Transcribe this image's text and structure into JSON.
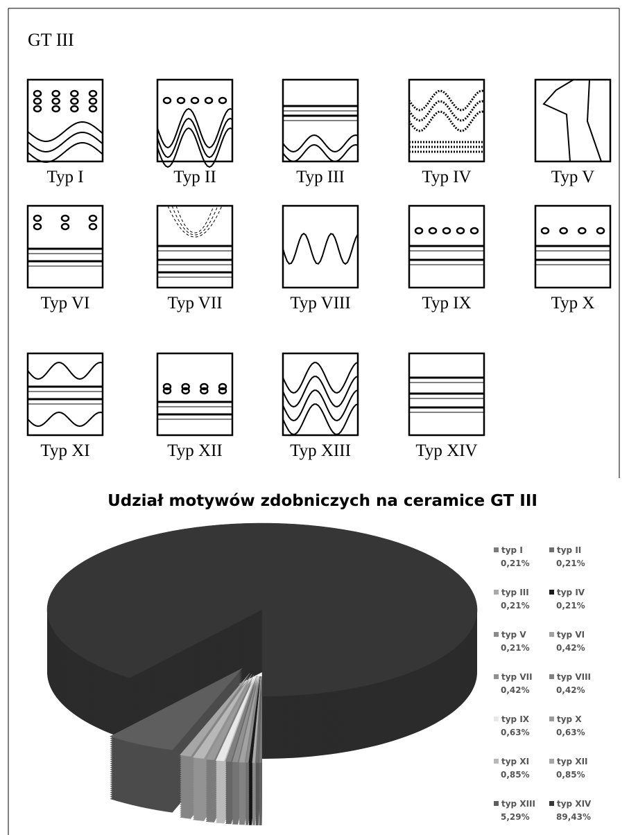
{
  "heading": "GT III",
  "motifs": [
    "Typ I",
    "Typ II",
    "Typ III",
    "Typ IV",
    "Typ V",
    "Typ VI",
    "Typ VII",
    "Typ VIII",
    "Typ IX",
    "Typ X",
    "Typ XI",
    "Typ XII",
    "Typ XIII",
    "Typ XIV"
  ],
  "chart_data": {
    "type": "pie",
    "title": "Udział motywów zdobniczych na ceramice GT III",
    "categories": [
      "typ I",
      "typ II",
      "typ III",
      "typ IV",
      "typ V",
      "typ VI",
      "typ VII",
      "typ VIII",
      "typ IX",
      "typ X",
      "typ XI",
      "typ XII",
      "typ XIII",
      "typ XIV"
    ],
    "values": [
      0.21,
      0.21,
      0.21,
      0.21,
      0.21,
      0.42,
      0.42,
      0.42,
      0.63,
      0.63,
      0.85,
      0.85,
      5.29,
      89.43
    ],
    "value_labels": [
      "0,21%",
      "0,21%",
      "0,21%",
      "0,21%",
      "0,21%",
      "0,42%",
      "0,42%",
      "0,42%",
      "0,63%",
      "0,63%",
      "0,85%",
      "0,85%",
      "5,29%",
      "89,43%"
    ],
    "colors": [
      "#7a7a7a",
      "#6d6d6d",
      "#aaaaaa",
      "#1a1a1a",
      "#8c8c8c",
      "#a2a2a2",
      "#919191",
      "#808080",
      "#e8e8e8",
      "#9a9a9a",
      "#b8b8b8",
      "#a6a6a6",
      "#5e5e5e",
      "#363636"
    ]
  }
}
